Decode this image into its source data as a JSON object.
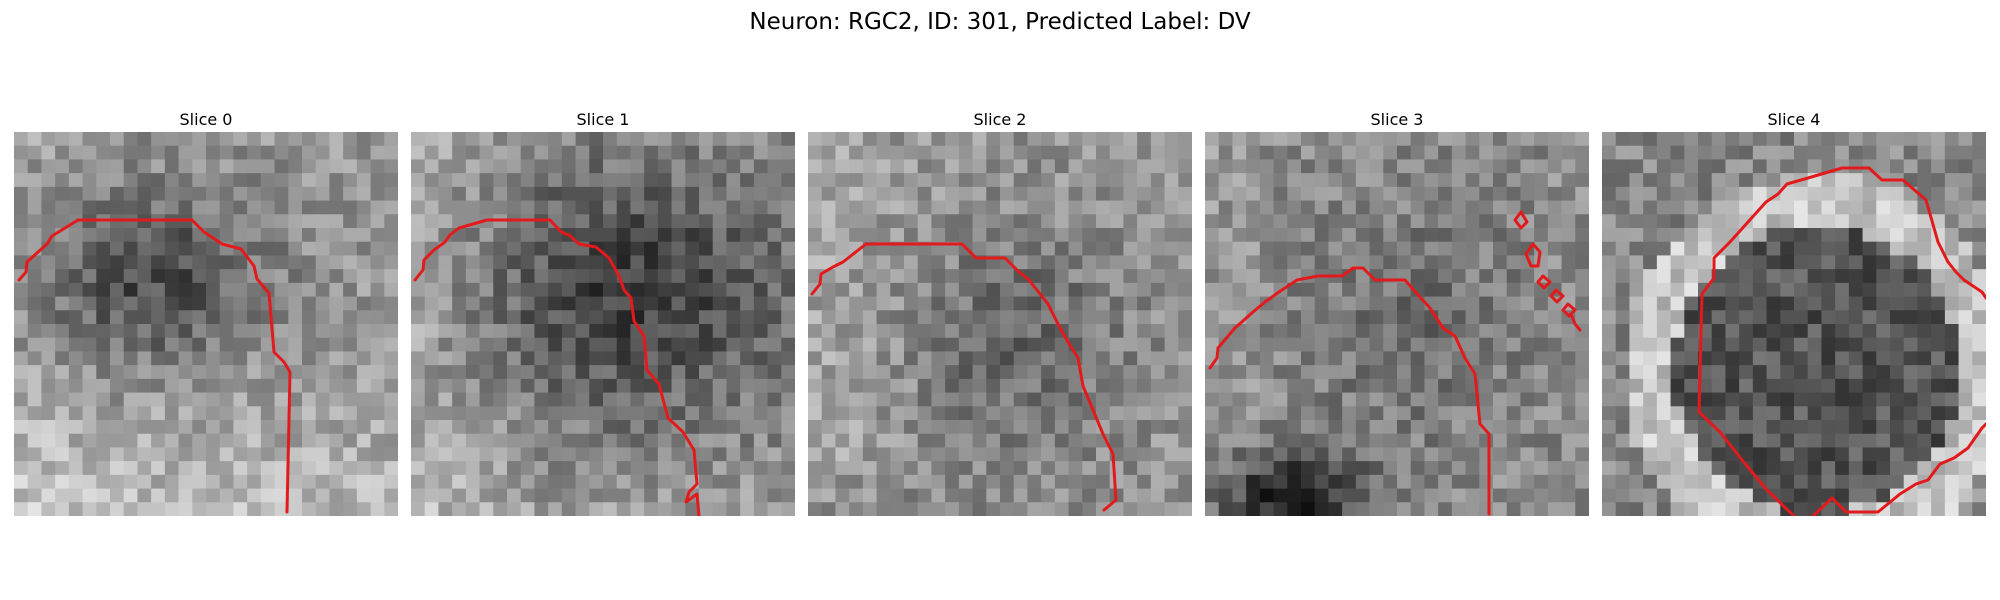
{
  "figure": {
    "title": "Neuron: RGC2, ID: 301, Predicted Label: DV"
  },
  "panels": [
    {
      "title": "Slice 0"
    },
    {
      "title": "Slice 1"
    },
    {
      "title": "Slice 2"
    },
    {
      "title": "Slice 3"
    },
    {
      "title": "Slice 4"
    }
  ],
  "colors": {
    "contour": "#e31a1c",
    "background": "#ffffff"
  }
}
